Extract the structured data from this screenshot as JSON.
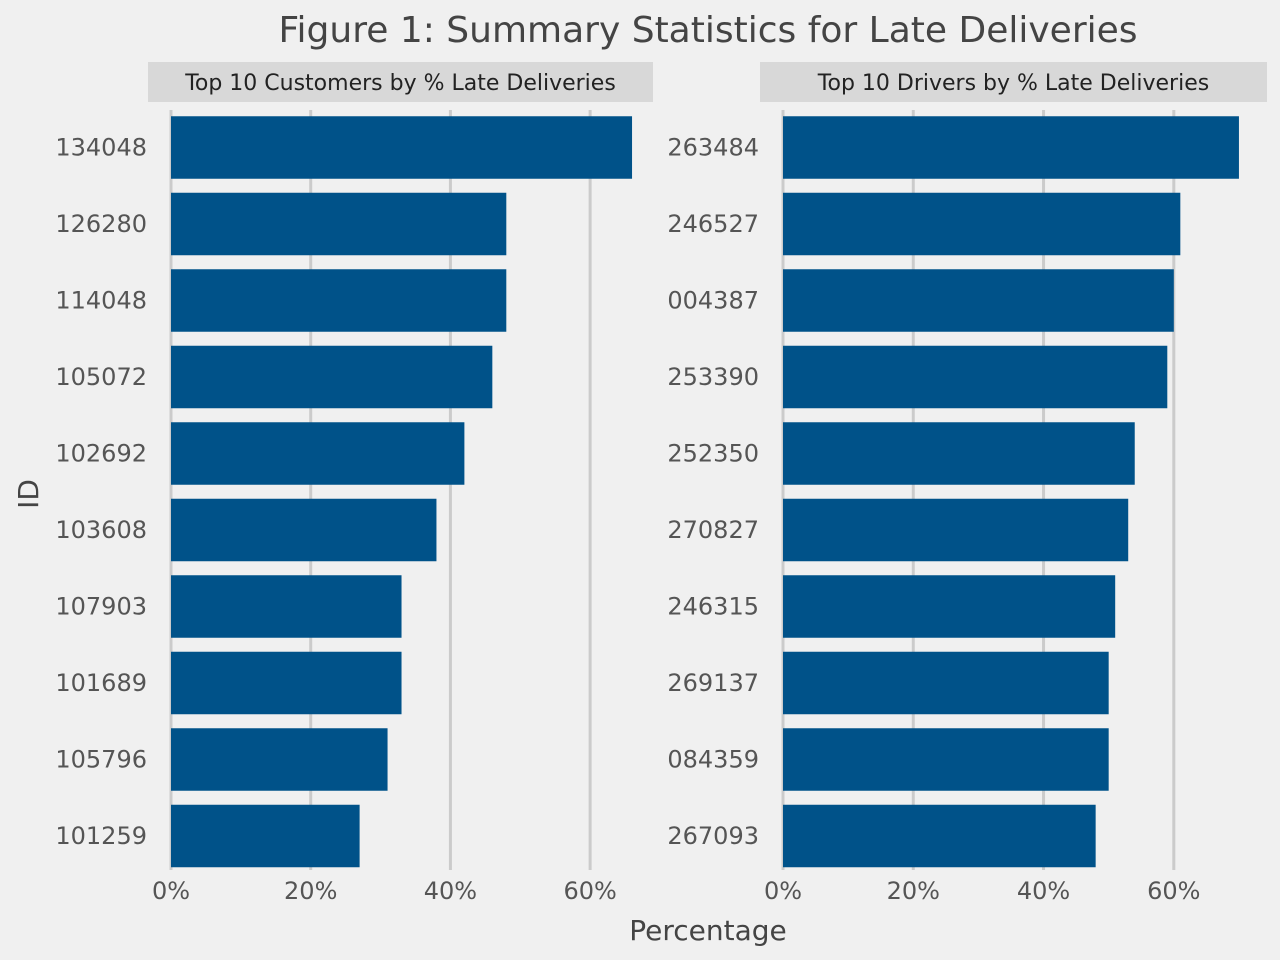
{
  "figure_title": "Figure 1: Summary Statistics for Late Deliveries",
  "xlabel": "Percentage",
  "ylabel": "ID",
  "colors": {
    "bar": "#005289",
    "background": "#f0f0f0",
    "strip": "#d8d8d8",
    "grid": "#cbcbcb"
  },
  "chart_data": [
    {
      "type": "bar",
      "orientation": "horizontal",
      "title": "Top 10 Customers by % Late Deliveries",
      "categories": [
        "134048",
        "126280",
        "114048",
        "105072",
        "102692",
        "103608",
        "107903",
        "101689",
        "105796",
        "101259"
      ],
      "values": [
        66,
        48,
        48,
        46,
        42,
        38,
        33,
        33,
        31,
        27
      ],
      "xlim": [
        0,
        69
      ],
      "xticks": [
        0,
        20,
        40,
        60
      ],
      "xtick_labels": [
        "0%",
        "20%",
        "40%",
        "60%"
      ],
      "grid": true
    },
    {
      "type": "bar",
      "orientation": "horizontal",
      "title": "Top 10 Drivers by % Late Deliveries",
      "categories": [
        "263484",
        "246527",
        "004387",
        "253390",
        "252350",
        "270827",
        "246315",
        "269137",
        "084359",
        "267093"
      ],
      "values": [
        70,
        61,
        60,
        59,
        54,
        53,
        51,
        50,
        50,
        48
      ],
      "xlim": [
        0,
        74
      ],
      "xticks": [
        0,
        20,
        40,
        60
      ],
      "xtick_labels": [
        "0%",
        "20%",
        "40%",
        "60%"
      ],
      "grid": true
    }
  ]
}
